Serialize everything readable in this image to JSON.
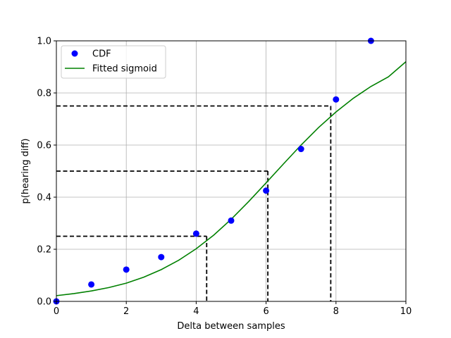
{
  "chart_data": {
    "type": "scatter",
    "xlabel": "Delta between samples",
    "ylabel": "p(hearing diff)",
    "xlim": [
      0,
      10
    ],
    "ylim": [
      0,
      1.0
    ],
    "xticks": [
      "0",
      "2",
      "4",
      "6",
      "8",
      "10"
    ],
    "yticks": [
      "0.0",
      "0.2",
      "0.4",
      "0.6",
      "0.8",
      "1.0"
    ],
    "grid": true,
    "legend_position": "upper-left",
    "series": [
      {
        "name": "CDF",
        "kind": "points",
        "color": "#0000ff",
        "x": [
          0,
          1,
          2,
          3,
          4,
          5,
          6,
          7,
          8,
          9
        ],
        "y": [
          0.0,
          0.065,
          0.122,
          0.17,
          0.26,
          0.31,
          0.425,
          0.585,
          0.775,
          1.0
        ]
      },
      {
        "name": "Fitted sigmoid",
        "kind": "line",
        "color": "#008000",
        "x": [
          0,
          0.5,
          1,
          1.5,
          2,
          2.5,
          3,
          3.5,
          4,
          4.5,
          5,
          5.5,
          6,
          6.5,
          7,
          7.5,
          8,
          8.5,
          9,
          9.5,
          10
        ],
        "y": [
          0.022,
          0.03,
          0.04,
          0.053,
          0.07,
          0.093,
          0.122,
          0.158,
          0.202,
          0.254,
          0.315,
          0.383,
          0.455,
          0.528,
          0.6,
          0.667,
          0.727,
          0.78,
          0.825,
          0.862,
          0.92
        ]
      }
    ],
    "reference_lines": [
      {
        "p": 0.25,
        "x": 4.3
      },
      {
        "p": 0.5,
        "x": 6.05
      },
      {
        "p": 0.75,
        "x": 7.85
      }
    ],
    "colors": {
      "points": "#0000ff",
      "curve": "#008000",
      "dashed": "#000000",
      "grid": "#b0b0b0"
    }
  }
}
